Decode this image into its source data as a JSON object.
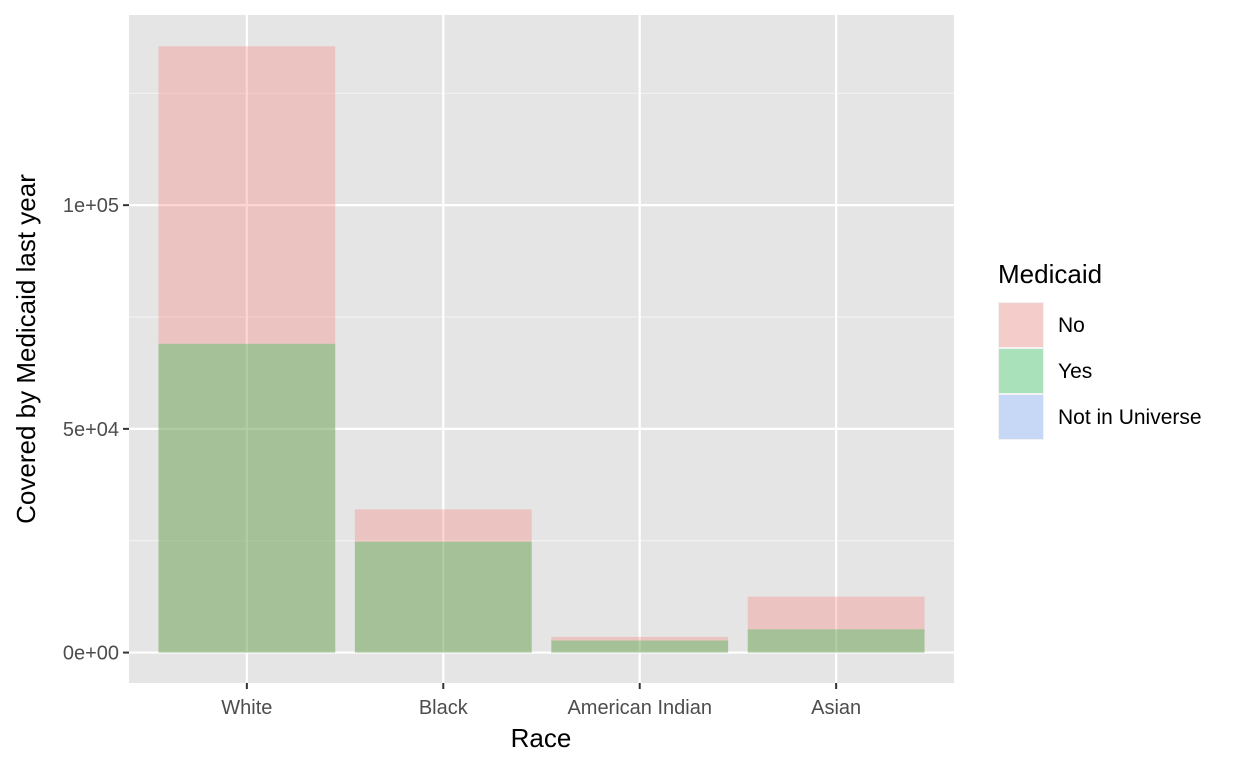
{
  "chart_data": {
    "type": "bar",
    "stacking": "overlay",
    "title": "",
    "xlabel": "Race",
    "ylabel": "Covered by Medicaid last year",
    "categories": [
      "White",
      "Black",
      "American Indian",
      "Asian"
    ],
    "series": [
      {
        "name": "No",
        "values": [
          135500,
          32000,
          3500,
          12500
        ],
        "color": "#F8766D"
      },
      {
        "name": "Yes",
        "values": [
          69000,
          24800,
          2700,
          5200
        ],
        "color": "#00BA38"
      },
      {
        "name": "Not in Universe",
        "values": [
          0,
          0,
          0,
          0
        ],
        "color": "#619CFF"
      }
    ],
    "bar_opacity": 0.3,
    "ylim": [
      -6800,
      142500
    ],
    "yticks": [
      0,
      50000,
      100000
    ],
    "ytick_labels": [
      "0e+00",
      "5e+04",
      "1e+05"
    ],
    "grid": true,
    "panel_background": "#E5E5E5",
    "legend": {
      "title": "Medicaid",
      "position": "right",
      "entries": [
        "No",
        "Yes",
        "Not in Universe"
      ]
    }
  }
}
